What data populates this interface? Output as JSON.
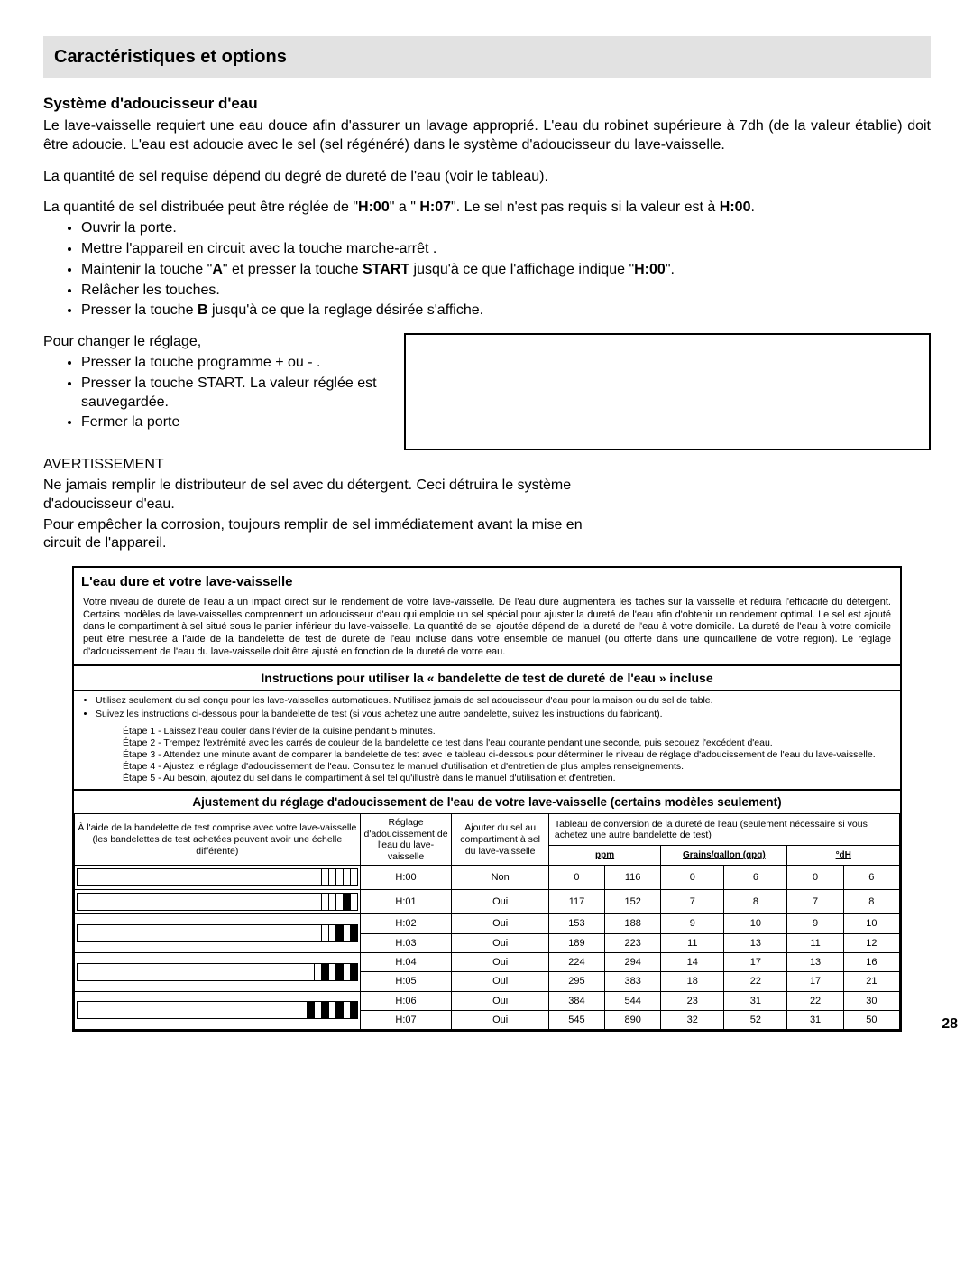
{
  "header": "Caractéristiques et options",
  "sub1": "Système d'adoucisseur d'eau",
  "p1": "Le lave-vaisselle requiert une eau douce afin d'assurer un lavage approprié. L'eau du robinet supérieure à 7dh (de la valeur établie) doit être adoucie. L'eau est adoucie avec le sel (sel régénéré) dans le système d'adoucisseur du lave-vaisselle.",
  "p2": "La quantité de sel requise dépend du degré de dureté de l'eau (voir le tableau).",
  "p3a": "La quantité de sel distribuée peut être réglée de \"",
  "p3b": "\" a \" ",
  "p3c": "\". Le sel n'est pas requis si la valeur est à ",
  "p3d": ".",
  "h00": "H:00",
  "h07": "H:07",
  "list1": {
    "a": "Ouvrir la porte.",
    "b": "Mettre l'appareil en circuit avec la touche marche-arrêt .",
    "c1": "Maintenir la touche \"",
    "c2": "\" et presser la touche ",
    "c3": " jusqu'à ce que l'affichage indique \"",
    "c4": "\".",
    "cA": "A",
    "cSTART": "START",
    "cH00": "H:00",
    "d": "Relâcher les touches.",
    "e1": "Presser la touche ",
    "e2": " jusqu'à ce que la reglage désirée s'affiche.",
    "eB": "B"
  },
  "p4": "Pour changer le réglage,",
  "list2": {
    "a": "Presser la touche programme + ou - .",
    "b": "Presser la touche START. La valeur réglée est sauvegardée.",
    "c": "Fermer la porte"
  },
  "warn": "AVERTISSEMENT",
  "p5": "Ne jamais remplir le distributeur de sel avec du détergent. Ceci détruira le système d'adoucisseur d'eau.",
  "p6": "Pour empêcher la corrosion, toujours remplir de sel immédiatement avant la mise en circuit de l'appareil.",
  "hw": {
    "title": "L'eau dure et votre lave-vaisselle",
    "para": "Votre niveau de dureté de l'eau a un impact direct sur le rendement de votre lave-vaisselle. De l'eau dure augmentera les taches sur la vaisselle et réduira l'efficacité du détergent. Certains modèles de lave-vaisselles comprennent un adoucisseur d'eau qui emploie un sel spécial pour ajuster la dureté de l'eau afin d'obtenir un rendement optimal. Le sel est ajouté dans le compartiment à sel situé sous le panier inférieur du lave-vaisselle. La quantité de sel ajoutée dépend de la dureté de l'eau à votre domicile. La dureté de l'eau à votre domicile peut être mesurée à l'aide de la bandelette de test de dureté de l'eau incluse dans votre ensemble de manuel (ou offerte dans une quincaillerie de votre région). Le réglage d'adoucissement de l'eau du lave-vaisselle doit être ajusté en fonction de la dureté de votre eau.",
    "instr_title": "Instructions pour utiliser la « bandelette de test de dureté de l'eau » incluse",
    "b1": "Utilisez seulement du sel conçu pour les lave-vaisselles automatiques. N'utilisez jamais de sel adoucisseur d'eau pour la maison ou du sel de table.",
    "b2": "Suivez les instructions ci-dessous pour la bandelette de test (si vous achetez une autre bandelette, suivez les instructions du fabricant).",
    "s1": "Étape 1 - Laissez l'eau couler dans l'évier de la cuisine pendant 5 minutes.",
    "s2": "Étape 2 - Trempez l'extrémité avec les carrés de couleur de la bandelette de test dans l'eau courante pendant une seconde, puis secouez l'excédent d'eau.",
    "s3": "Étape 3 - Attendez une minute avant de comparer la bandelette de test avec le tableau ci-dessous pour déterminer le niveau de réglage d'adoucissement de l'eau du lave-vaisselle.",
    "s4": "Étape 4 - Ajustez le réglage d'adoucissement de l'eau. Consultez le manuel d'utilisation et d'entretien de plus amples renseignements.",
    "s5": "Étape 5 - Au besoin, ajoutez du sel dans le compartiment à sel tel qu'illustré dans le manuel d'utilisation et d'entretien.",
    "adj_title": "Ajustement du réglage d'adoucissement de l'eau de votre lave-vaisselle (certains modèles seulement)",
    "col_strip": "À l'aide de la bandelette de test comprise avec votre lave-vaisselle (les bandelettes de test achetées peuvent avoir une échelle différente)",
    "col_setting": "Réglage d'adoucissement de l'eau du lave-vaisselle",
    "col_salt": "Ajouter du sel au compartiment à sel du lave-vaisselle",
    "col_conv": "Tableau de conversion de la dureté de l'eau (seulement nécessaire si vous achetez une autre bandelette de test)",
    "u_ppm": "ppm",
    "u_gpg": "Grains/gallon (gpg)",
    "u_dh": "°dH",
    "rows": [
      {
        "setting": "H:00",
        "salt": "Non",
        "ppm": [
          "0",
          "116"
        ],
        "gpg": [
          "0",
          "6"
        ],
        "dh": [
          "0",
          "6"
        ]
      },
      {
        "setting": "H:01",
        "salt": "Oui",
        "ppm": [
          "117",
          "152"
        ],
        "gpg": [
          "7",
          "8"
        ],
        "dh": [
          "7",
          "8"
        ]
      },
      {
        "setting": "H:02",
        "salt": "Oui",
        "ppm": [
          "153",
          "188"
        ],
        "gpg": [
          "9",
          "10"
        ],
        "dh": [
          "9",
          "10"
        ]
      },
      {
        "setting": "H:03",
        "salt": "Oui",
        "ppm": [
          "189",
          "223"
        ],
        "gpg": [
          "11",
          "13"
        ],
        "dh": [
          "11",
          "12"
        ]
      },
      {
        "setting": "H:04",
        "salt": "Oui",
        "ppm": [
          "224",
          "294"
        ],
        "gpg": [
          "14",
          "17"
        ],
        "dh": [
          "13",
          "16"
        ]
      },
      {
        "setting": "H:05",
        "salt": "Oui",
        "ppm": [
          "295",
          "383"
        ],
        "gpg": [
          "18",
          "22"
        ],
        "dh": [
          "17",
          "21"
        ]
      },
      {
        "setting": "H:06",
        "salt": "Oui",
        "ppm": [
          "384",
          "544"
        ],
        "gpg": [
          "23",
          "31"
        ],
        "dh": [
          "22",
          "30"
        ]
      },
      {
        "setting": "H:07",
        "salt": "Oui",
        "ppm": [
          "545",
          "890"
        ],
        "gpg": [
          "32",
          "52"
        ],
        "dh": [
          "31",
          "50"
        ]
      }
    ],
    "strip_patterns": [
      [
        0,
        0,
        0,
        0,
        0
      ],
      [
        0,
        0,
        0,
        1,
        0
      ],
      [
        0,
        0,
        1,
        0,
        1
      ],
      [
        0,
        1,
        0,
        1,
        0,
        1
      ],
      [
        1,
        0,
        1,
        0,
        1,
        0,
        1
      ]
    ]
  },
  "page": "28"
}
